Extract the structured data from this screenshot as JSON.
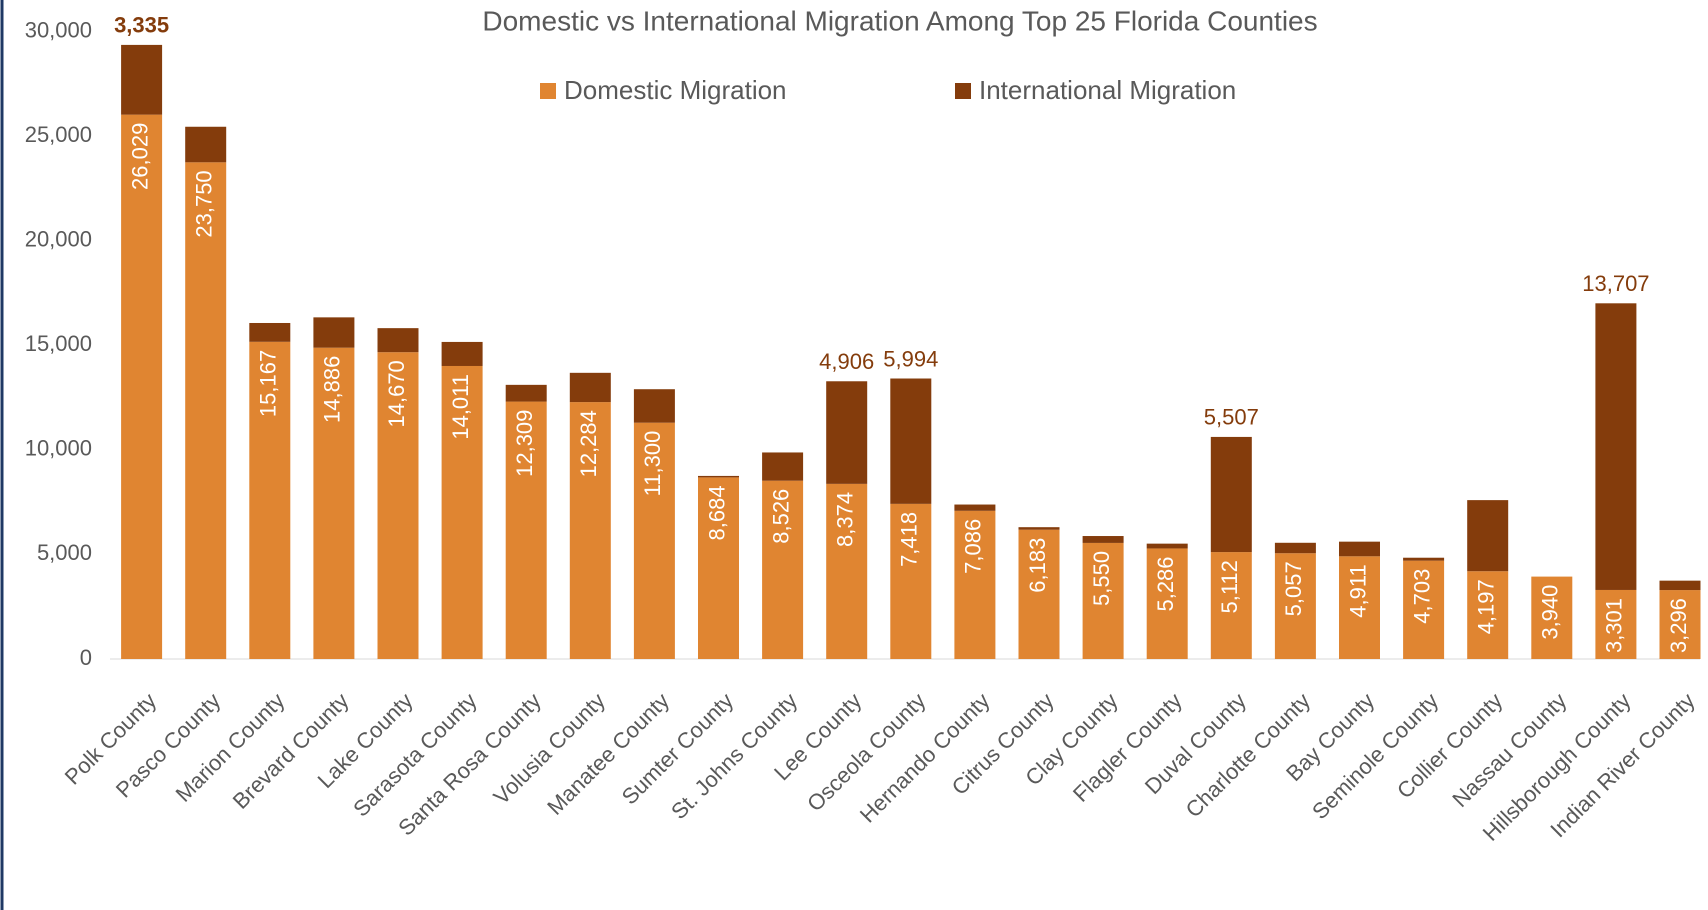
{
  "chart_data": {
    "type": "bar",
    "stacked": true,
    "title": "Domestic vs International Migration Among Top 25 Florida Counties",
    "categories": [
      "Polk County",
      "Pasco County",
      "Marion County",
      "Brevard County",
      "Lake County",
      "Sarasota County",
      "Santa Rosa County",
      "Volusia County",
      "Manatee County",
      "Sumter County",
      "St. Johns County",
      "Lee County",
      "Osceola County",
      "Hernando County",
      "Citrus County",
      "Clay County",
      "Flagler County",
      "Duval County",
      "Charlotte County",
      "Bay County",
      "Seminole County",
      "Collier County",
      "Nassau County",
      "Hillsborough County",
      "Indian River County"
    ],
    "series": [
      {
        "name": "Domestic Migration",
        "color": "#e08531",
        "values": [
          26029,
          23750,
          15167,
          14886,
          14670,
          14011,
          12309,
          12284,
          11300,
          8684,
          8526,
          8374,
          7418,
          7086,
          6183,
          5550,
          5286,
          5112,
          5057,
          4911,
          4703,
          4197,
          3940,
          3301,
          3296
        ],
        "value_labels": [
          "26,029",
          "23,750",
          "15,167",
          "14,886",
          "14,670",
          "14,011",
          "12,309",
          "12,284",
          "11,300",
          "8,684",
          "8,526",
          "8,374",
          "7,418",
          "7,086",
          "6,183",
          "5,550",
          "5,286",
          "5,112",
          "5,057",
          "4,911",
          "4,703",
          "4,197",
          "3,940",
          "3,301",
          "3,296"
        ]
      },
      {
        "name": "International Migration",
        "color": "#843c0c",
        "values": [
          3335,
          1700,
          900,
          1450,
          1150,
          1150,
          800,
          1400,
          1600,
          70,
          1350,
          4906,
          5994,
          300,
          120,
          330,
          230,
          5507,
          500,
          700,
          140,
          3400,
          0,
          13707,
          450
        ],
        "value_labels": [
          "3,335",
          null,
          null,
          null,
          null,
          null,
          null,
          null,
          null,
          null,
          null,
          "4,906",
          "5,994",
          null,
          null,
          null,
          null,
          "5,507",
          null,
          null,
          null,
          null,
          null,
          "13,707",
          null
        ]
      }
    ],
    "ylim": [
      0,
      30000
    ],
    "yticks": [
      0,
      {
        "value": 5000,
        "label": "5,000"
      },
      {
        "value": 10000,
        "label": "10,000"
      },
      {
        "value": 15000,
        "label": "15,000"
      },
      {
        "value": 20000,
        "label": "20,000"
      },
      {
        "value": 25000,
        "label": "25,000"
      },
      {
        "value": 30000,
        "label": "30,000"
      }
    ],
    "grid": false,
    "legend": "top"
  }
}
